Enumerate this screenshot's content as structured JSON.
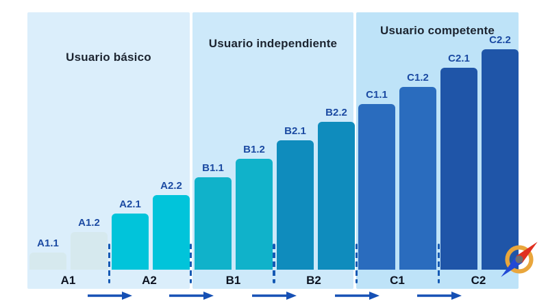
{
  "chart_data": {
    "type": "bar",
    "title": "",
    "description": "CEFR language proficiency ladder with 12 sub-level bars rising from A1.1 to C2.2",
    "categories": [
      "A1.1",
      "A1.2",
      "A2.1",
      "A2.2",
      "B1.1",
      "B1.2",
      "B2.1",
      "B2.2",
      "C1.1",
      "C1.2",
      "C2.1",
      "C2.2"
    ],
    "values": [
      25,
      55,
      82,
      109,
      135,
      162,
      189,
      216,
      242,
      267,
      295,
      322
    ],
    "value_note": "relative bar heights (no numeric axis is shown in the figure)",
    "xlabel": "",
    "ylabel": "",
    "grid": false,
    "axes_visible": false,
    "legend": "none",
    "groups": [
      {
        "title": "Usuario básico",
        "levels": [
          "A1",
          "A2"
        ],
        "bg": "#dbeefb"
      },
      {
        "title": "Usuario independiente",
        "levels": [
          "B1",
          "B2"
        ],
        "bg": "#cde9fa"
      },
      {
        "title": "Usuario competente",
        "levels": [
          "C1",
          "C2"
        ],
        "bg": "#bee3f8"
      }
    ],
    "levels": [
      {
        "label": "A1",
        "color": "#d6e9ee"
      },
      {
        "label": "A2",
        "color": "#01c4da"
      },
      {
        "label": "B1",
        "color": "#10b2ca"
      },
      {
        "label": "B2",
        "color": "#0f8cbd"
      },
      {
        "label": "C1",
        "color": "#2a6cbe"
      },
      {
        "label": "C2",
        "color": "#1f55a8"
      }
    ]
  },
  "styles": {
    "background": "#ffffff",
    "title_color": "#1c2430",
    "bar_label_color": "#1b4aa2",
    "level_label_color": "#0c1220",
    "separator_color": "#1559b3",
    "arrow_color": "#1550b5"
  },
  "progress_arrows": {
    "count": 5
  },
  "icons": {
    "compass": {
      "name": "compass-logo-icon",
      "ring": "#e9a63c",
      "needle_north": "#e03020",
      "needle_south": "#2149d6",
      "hub": "#6e6f71"
    }
  }
}
